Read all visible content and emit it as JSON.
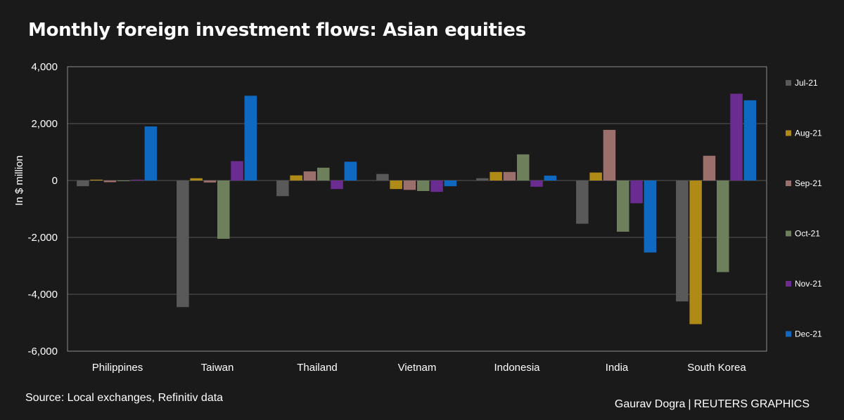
{
  "title": "Monthly foreign investment flows: Asian equities",
  "footer": {
    "source": "Source: Local exchanges, Refinitiv data",
    "author": "Gaurav Dogra",
    "separator": "|",
    "outlet": "REUTERS GRAPHICS"
  },
  "chart_data": {
    "type": "bar",
    "title": "Monthly foreign investment flows: Asian equities",
    "xlabel": "",
    "ylabel": "In $ million",
    "ylim": [
      -6000,
      4000
    ],
    "yticks": [
      4000,
      2000,
      0,
      -2000,
      -4000,
      -6000
    ],
    "ytick_labels": [
      "4,000",
      "2,000",
      "0",
      "-2,000",
      "-4,000",
      "-6,000"
    ],
    "grid": true,
    "legend_position": "right",
    "categories": [
      "Philippines",
      "Taiwan",
      "Thailand",
      "Vietnam",
      "Indonesia",
      "India",
      "South Korea"
    ],
    "series": [
      {
        "name": "Jul-21",
        "color": "#595959",
        "values": [
          -200,
          -4450,
          -550,
          230,
          80,
          -1520,
          -4250
        ]
      },
      {
        "name": "Aug-21",
        "color": "#b08a16",
        "values": [
          30,
          80,
          180,
          -300,
          300,
          280,
          -5050
        ]
      },
      {
        "name": "Sep-21",
        "color": "#9b6f6c",
        "values": [
          -60,
          -70,
          320,
          -330,
          300,
          1780,
          870
        ]
      },
      {
        "name": "Oct-21",
        "color": "#6e7f5c",
        "values": [
          0,
          -2050,
          450,
          -370,
          920,
          -1800,
          -3220
        ]
      },
      {
        "name": "Nov-21",
        "color": "#6a2c91",
        "values": [
          30,
          680,
          -300,
          -400,
          -220,
          -800,
          3050
        ]
      },
      {
        "name": "Dec-21",
        "color": "#0f69c0",
        "values": [
          1900,
          2980,
          660,
          -200,
          170,
          -2530,
          2820
        ]
      }
    ]
  }
}
